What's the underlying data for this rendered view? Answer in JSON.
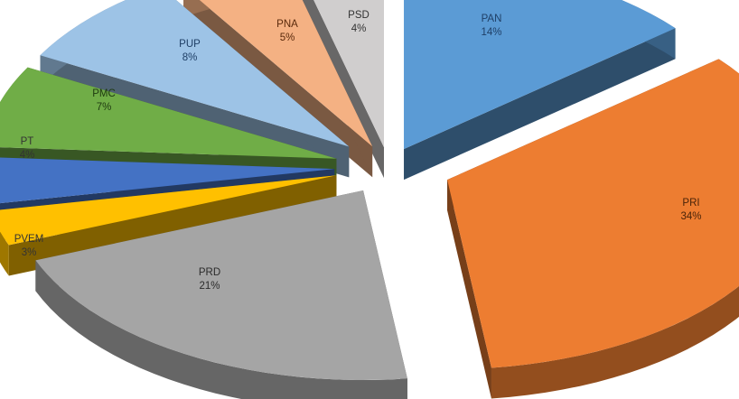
{
  "chart_data": {
    "type": "pie",
    "variant": "3d-exploded",
    "title": "",
    "legend": "none",
    "slices": [
      {
        "label": "PAN",
        "pct_label": "14%",
        "value": 14,
        "color": "#5b9bd5",
        "label_color": "#1f3f66"
      },
      {
        "label": "PRI",
        "pct_label": "34%",
        "value": 34,
        "color": "#ed7d31",
        "label_color": "#4a2409"
      },
      {
        "label": "PRD",
        "pct_label": "21%",
        "value": 21,
        "color": "#a5a5a5",
        "label_color": "#2b2b2b"
      },
      {
        "label": "PVEM",
        "pct_label": "3%",
        "value": 3,
        "color": "#ffc000",
        "label_color": "#333333"
      },
      {
        "label": "PT",
        "pct_label": "4%",
        "value": 4,
        "color": "#4472c4",
        "label_color": "#333333"
      },
      {
        "label": "PMC",
        "pct_label": "7%",
        "value": 7,
        "color": "#70ad47",
        "label_color": "#1e3a10"
      },
      {
        "label": "PUP",
        "pct_label": "8%",
        "value": 8,
        "color": "#9dc3e6",
        "label_color": "#1f3f66"
      },
      {
        "label": "PNA",
        "pct_label": "5%",
        "value": 5,
        "color": "#f4b183",
        "label_color": "#5a2a0c"
      },
      {
        "label": "PSD",
        "pct_label": "4%",
        "value": 4,
        "color": "#d0cece",
        "label_color": "#333333"
      }
    ]
  }
}
